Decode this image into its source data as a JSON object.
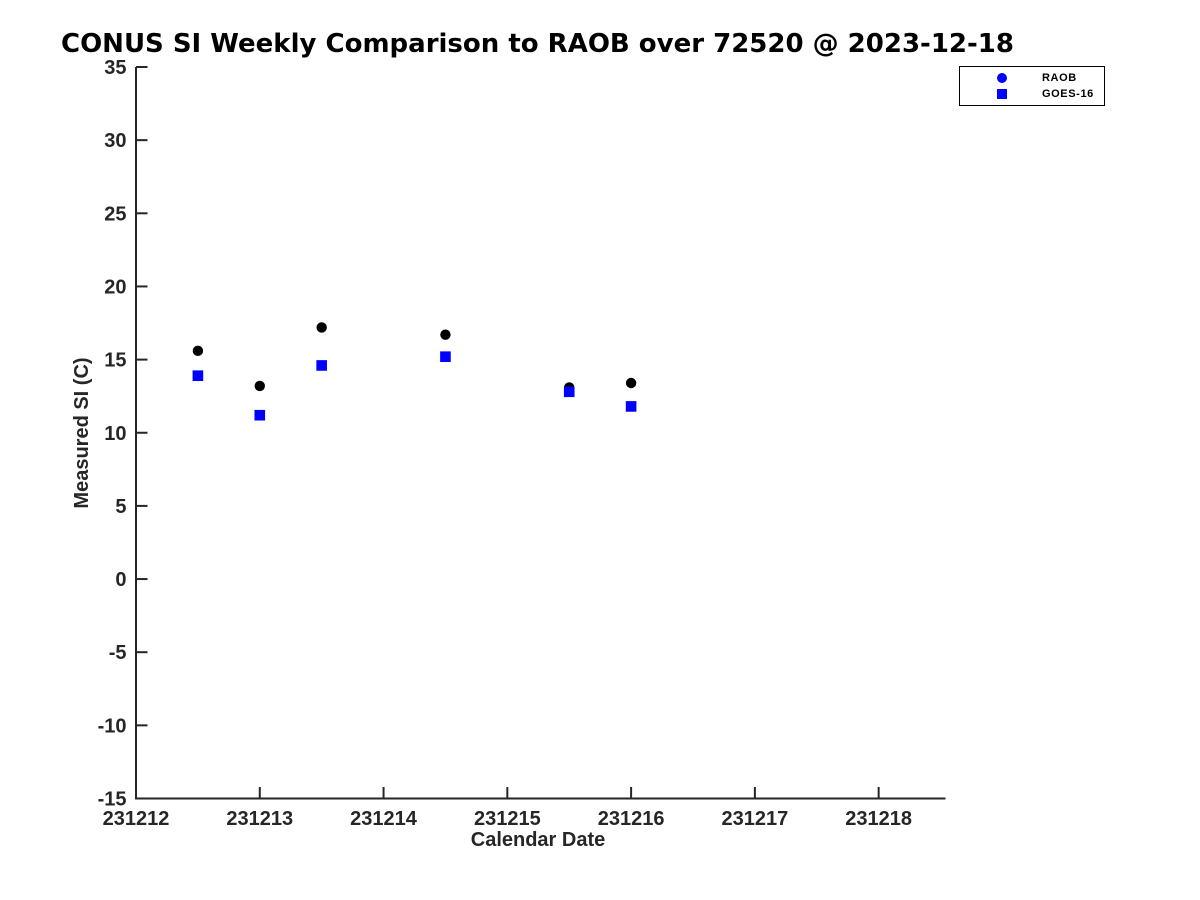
{
  "chart_data": {
    "type": "scatter",
    "title": "CONUS SI Weekly Comparison to RAOB over 72520 @ 2023-12-18",
    "xlabel": "Calendar Date",
    "ylabel": "Measured SI (C)",
    "xlim": [
      231212,
      231218.54
    ],
    "ylim": [
      -15,
      35
    ],
    "xticks": [
      231212,
      231213,
      231214,
      231215,
      231216,
      231217,
      231218
    ],
    "yticks": [
      35,
      30,
      25,
      20,
      15,
      10,
      5,
      0,
      -5,
      -10,
      -15
    ],
    "grid": false,
    "legend_position": "top-right",
    "series": [
      {
        "name": "RAOB",
        "marker": "circle",
        "color": "#000000",
        "legend_marker_color": "#0000ff",
        "x": [
          231212.5,
          231213,
          231213.5,
          231214.5,
          231215.5,
          231216
        ],
        "y": [
          15.6,
          13.2,
          17.2,
          16.7,
          13.1,
          13.4
        ]
      },
      {
        "name": "GOES-16",
        "marker": "square",
        "color": "#0000ff",
        "legend_marker_color": "#0000ff",
        "x": [
          231212.5,
          231213,
          231213.5,
          231214.5,
          231215.5,
          231216
        ],
        "y": [
          13.9,
          11.2,
          14.6,
          15.2,
          12.8,
          11.8
        ]
      }
    ]
  },
  "colors": {
    "axis": "#262626",
    "title_text": "#000000",
    "marker_black": "#000000",
    "marker_blue": "#0000ff",
    "background": "#ffffff"
  }
}
